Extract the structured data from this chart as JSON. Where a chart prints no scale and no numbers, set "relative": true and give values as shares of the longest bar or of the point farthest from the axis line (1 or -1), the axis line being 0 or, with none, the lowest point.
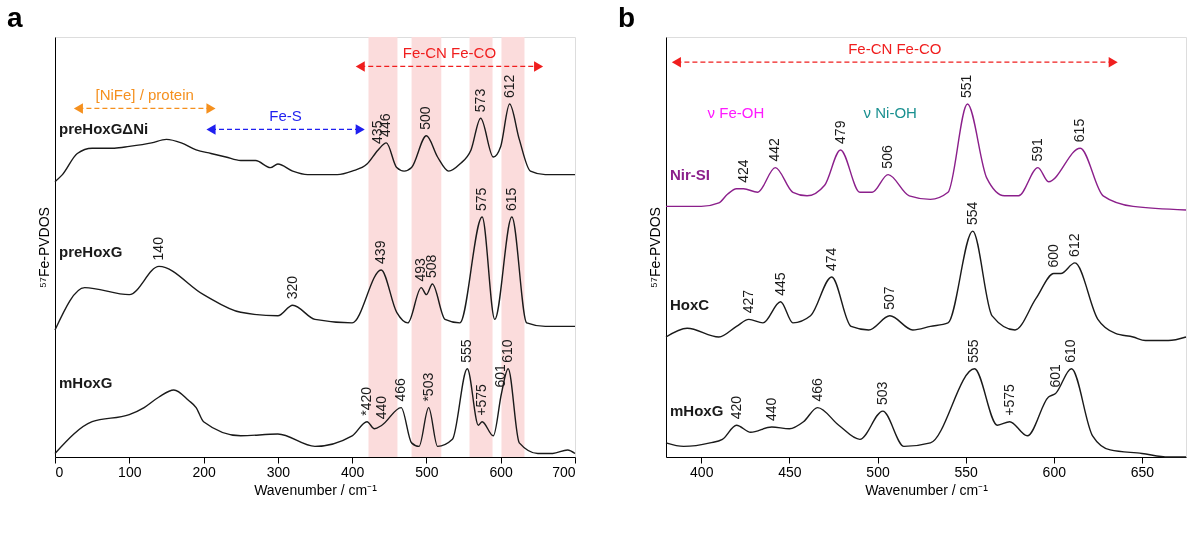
{
  "chart_data": [
    {
      "type": "line",
      "title": "a",
      "xlabel": "Wavenumber / cm⁻¹",
      "ylabel": "⁵⁷Fe-PVDOS",
      "relative": true,
      "grid": false,
      "xlim": [
        0,
        700
      ],
      "xticks": [
        0,
        100,
        200,
        300,
        400,
        500,
        600,
        700
      ],
      "bands": [
        {
          "axis": "x",
          "from": 422,
          "to": 461,
          "color": "#fbdcdc"
        },
        {
          "axis": "x",
          "from": 480,
          "to": 520,
          "color": "#fbdcdc"
        },
        {
          "axis": "x",
          "from": 558,
          "to": 589,
          "color": "#fbdcdc"
        },
        {
          "axis": "x",
          "from": 601,
          "to": 632,
          "color": "#fbdcdc"
        }
      ],
      "series": [
        {
          "name": "preHoxGΔNi",
          "color": "#1a1a1a",
          "x": [
            0,
            10,
            30,
            50,
            80,
            100,
            130,
            150,
            170,
            190,
            210,
            230,
            250,
            270,
            290,
            300,
            320,
            340,
            360,
            380,
            400,
            420,
            435,
            446,
            460,
            470,
            480,
            500,
            515,
            530,
            545,
            560,
            573,
            590,
            600,
            612,
            625,
            640,
            660,
            680,
            700
          ],
          "values": [
            0.78,
            0.8,
            0.86,
            0.875,
            0.875,
            0.88,
            0.89,
            0.9,
            0.89,
            0.87,
            0.86,
            0.85,
            0.84,
            0.84,
            0.82,
            0.83,
            0.81,
            0.8,
            0.8,
            0.8,
            0.81,
            0.83,
            0.87,
            0.89,
            0.82,
            0.81,
            0.82,
            0.91,
            0.85,
            0.81,
            0.83,
            0.87,
            0.96,
            0.85,
            0.88,
            1.0,
            0.9,
            0.81,
            0.8,
            0.8,
            0.8
          ]
        },
        {
          "name": "preHoxG",
          "color": "#1a1a1a",
          "x": [
            0,
            40,
            100,
            140,
            200,
            250,
            300,
            320,
            350,
            400,
            439,
            460,
            475,
            493,
            500,
            508,
            525,
            545,
            575,
            592,
            615,
            635,
            660,
            700
          ],
          "values": [
            0.36,
            0.48,
            0.46,
            0.54,
            0.46,
            0.41,
            0.4,
            0.43,
            0.39,
            0.38,
            0.53,
            0.41,
            0.38,
            0.48,
            0.46,
            0.49,
            0.39,
            0.38,
            0.68,
            0.39,
            0.68,
            0.38,
            0.37,
            0.37
          ]
        },
        {
          "name": "mHoxG",
          "color": "#1a1a1a",
          "x": [
            0,
            50,
            100,
            120,
            140,
            160,
            180,
            190,
            200,
            250,
            300,
            350,
            400,
            420,
            430,
            440,
            466,
            480,
            490,
            503,
            515,
            535,
            555,
            570,
            575,
            590,
            601,
            610,
            625,
            650,
            670,
            690,
            700
          ],
          "values": [
            0.01,
            0.1,
            0.12,
            0.14,
            0.17,
            0.19,
            0.16,
            0.14,
            0.1,
            0.06,
            0.065,
            0.03,
            0.06,
            0.1,
            0.08,
            0.09,
            0.14,
            0.04,
            0.03,
            0.14,
            0.03,
            0.05,
            0.25,
            0.09,
            0.1,
            0.06,
            0.18,
            0.25,
            0.04,
            0.01,
            0.01,
            0.02,
            0.01
          ]
        }
      ],
      "annotations": [
        "[NiFe] / protein",
        "Fe-S",
        "Fe-CN       Fe-CO",
        {
          "text": "435",
          "x": 435,
          "y": 0.87
        },
        {
          "text": "446",
          "x": 446,
          "y": 0.89
        },
        {
          "text": "500",
          "x": 500,
          "y": 0.91
        },
        {
          "text": "573",
          "x": 573,
          "y": 0.96
        },
        {
          "text": "612",
          "x": 612,
          "y": 1.0
        },
        {
          "text": "140",
          "x": 140,
          "y": 0.54
        },
        {
          "text": "320",
          "x": 320,
          "y": 0.43
        },
        {
          "text": "439",
          "x": 439,
          "y": 0.53
        },
        {
          "text": "493",
          "x": 493,
          "y": 0.48
        },
        {
          "text": "508",
          "x": 508,
          "y": 0.49
        },
        {
          "text": "575",
          "x": 575,
          "y": 0.68
        },
        {
          "text": "615",
          "x": 615,
          "y": 0.68
        },
        {
          "text": "*420",
          "x": 420,
          "y": 0.1
        },
        {
          "text": "440",
          "x": 440,
          "y": 0.09
        },
        {
          "text": "466",
          "x": 466,
          "y": 0.14
        },
        {
          "text": "*503",
          "x": 503,
          "y": 0.14
        },
        {
          "text": "555",
          "x": 555,
          "y": 0.25
        },
        {
          "text": "+575",
          "x": 575,
          "y": 0.1
        },
        {
          "text": "601",
          "x": 601,
          "y": 0.18
        },
        {
          "text": "610",
          "x": 610,
          "y": 0.25
        }
      ]
    },
    {
      "type": "line",
      "title": "b",
      "xlabel": "Wavenumber / cm⁻¹",
      "ylabel": "⁵⁷Fe-PVDOS",
      "relative": true,
      "grid": false,
      "xlim": [
        380,
        675
      ],
      "xticks": [
        400,
        450,
        500,
        550,
        600,
        650
      ],
      "series": [
        {
          "name": "Nir-SI",
          "color": "#8b1f8b",
          "x": [
            380,
            400,
            410,
            415,
            420,
            424,
            432,
            442,
            452,
            460,
            470,
            479,
            490,
            497,
            506,
            518,
            530,
            540,
            551,
            562,
            572,
            580,
            591,
            597,
            615,
            628,
            645,
            675
          ],
          "values": [
            0.71,
            0.71,
            0.72,
            0.745,
            0.76,
            0.76,
            0.75,
            0.82,
            0.75,
            0.74,
            0.77,
            0.87,
            0.75,
            0.75,
            0.8,
            0.74,
            0.73,
            0.75,
            1.0,
            0.79,
            0.74,
            0.74,
            0.82,
            0.78,
            0.875,
            0.74,
            0.71,
            0.7
          ]
        },
        {
          "name": "HoxC",
          "color": "#1a1a1a",
          "x": [
            380,
            392,
            410,
            420,
            427,
            435,
            445,
            452,
            462,
            474,
            485,
            495,
            507,
            520,
            530,
            540,
            554,
            565,
            578,
            590,
            600,
            604,
            612,
            625,
            635,
            645,
            652,
            665,
            675
          ],
          "values": [
            0.34,
            0.365,
            0.34,
            0.37,
            0.39,
            0.38,
            0.44,
            0.38,
            0.4,
            0.51,
            0.37,
            0.36,
            0.4,
            0.36,
            0.37,
            0.38,
            0.64,
            0.4,
            0.36,
            0.45,
            0.52,
            0.52,
            0.55,
            0.39,
            0.35,
            0.34,
            0.33,
            0.33,
            0.34
          ]
        },
        {
          "name": "mHoxG",
          "color": "#1a1a1a",
          "x": [
            380,
            390,
            405,
            412,
            420,
            428,
            440,
            450,
            458,
            466,
            478,
            490,
            503,
            515,
            530,
            555,
            568,
            575,
            585,
            597,
            601,
            610,
            622,
            632,
            650,
            665,
            675
          ],
          "values": [
            0.04,
            0.03,
            0.04,
            0.05,
            0.09,
            0.07,
            0.085,
            0.08,
            0.1,
            0.14,
            0.09,
            0.05,
            0.13,
            0.03,
            0.04,
            0.25,
            0.09,
            0.1,
            0.06,
            0.17,
            0.18,
            0.25,
            0.06,
            0.02,
            0.01,
            0.0,
            0.0
          ]
        }
      ],
      "annotations": [
        "Fe-CN      Fe-CO",
        "ν Fe-OH",
        "ν Ni-OH",
        {
          "text": "424",
          "x": 424,
          "y": 0.76
        },
        {
          "text": "442",
          "x": 442,
          "y": 0.82
        },
        {
          "text": "479",
          "x": 479,
          "y": 0.87
        },
        {
          "text": "506",
          "x": 506,
          "y": 0.8
        },
        {
          "text": "551",
          "x": 551,
          "y": 1.0
        },
        {
          "text": "591",
          "x": 591,
          "y": 0.82
        },
        {
          "text": "615",
          "x": 615,
          "y": 0.875
        },
        {
          "text": "427",
          "x": 427,
          "y": 0.39
        },
        {
          "text": "445",
          "x": 445,
          "y": 0.44
        },
        {
          "text": "474",
          "x": 474,
          "y": 0.51
        },
        {
          "text": "507",
          "x": 507,
          "y": 0.4
        },
        {
          "text": "554",
          "x": 554,
          "y": 0.64
        },
        {
          "text": "600",
          "x": 600,
          "y": 0.52
        },
        {
          "text": "612",
          "x": 612,
          "y": 0.55
        },
        {
          "text": "420",
          "x": 420,
          "y": 0.09
        },
        {
          "text": "440",
          "x": 440,
          "y": 0.085
        },
        {
          "text": "466",
          "x": 466,
          "y": 0.14
        },
        {
          "text": "503",
          "x": 503,
          "y": 0.13
        },
        {
          "text": "555",
          "x": 555,
          "y": 0.25
        },
        {
          "text": "+575",
          "x": 575,
          "y": 0.1
        },
        {
          "text": "601",
          "x": 601,
          "y": 0.18
        },
        {
          "text": "610",
          "x": 610,
          "y": 0.25
        }
      ]
    }
  ]
}
